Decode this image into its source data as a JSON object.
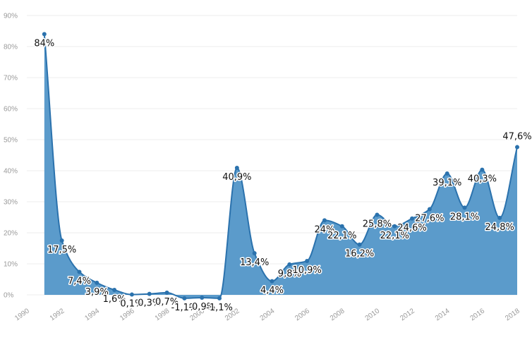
{
  "chart_data": {
    "type": "area",
    "title": "",
    "xlabel": "",
    "ylabel": "",
    "x": [
      1991,
      1992,
      1993,
      1994,
      1995,
      1996,
      1997,
      1998,
      1999,
      2000,
      2001,
      2002,
      2003,
      2004,
      2005,
      2006,
      2007,
      2008,
      2009,
      2010,
      2011,
      2012,
      2013,
      2014,
      2015,
      2016,
      2017,
      2018
    ],
    "values": [
      84,
      17.5,
      7.4,
      3.9,
      1.6,
      0.1,
      0.3,
      0.7,
      -1.1,
      -0.9,
      -1.1,
      40.9,
      13.4,
      4.4,
      9.8,
      10.9,
      24,
      22.1,
      16.2,
      25.8,
      22.1,
      24.6,
      27.6,
      39.1,
      28.1,
      40.3,
      24.8,
      47.6
    ],
    "data_labels": [
      "84%",
      "17,5%",
      "7,4%",
      "3,9%",
      "1,6%",
      "0,1%",
      "0,3%",
      "0,7%",
      "-1,1%",
      "-0,9%",
      "-1,1%",
      "40,9%",
      "13,4%",
      "4,4%",
      "9,8%",
      "10,9%",
      "24%",
      "22,1%",
      "16,2%",
      "25,8%",
      "22,1%",
      "24,6%",
      "27,6%",
      "39,1%",
      "28,1%",
      "40,3%",
      "24,8%",
      "47,6%"
    ],
    "y_ticks": [
      "0%",
      "10%",
      "20%",
      "30%",
      "40%",
      "50%",
      "60%",
      "70%",
      "80%",
      "90%"
    ],
    "x_ticks": [
      "1990",
      "1992",
      "1994",
      "1996",
      "1998",
      "2000",
      "2002",
      "2004",
      "2006",
      "2008",
      "2010",
      "2012",
      "2014",
      "2016",
      "2018"
    ],
    "xlim": [
      1990,
      2018
    ],
    "ylim": [
      0,
      90
    ],
    "grid": true,
    "legend": "none",
    "colors": {
      "area": "#5b9bcb",
      "line": "#2b72ad",
      "marker": "#2b72ad",
      "grid": "#ececec"
    }
  }
}
